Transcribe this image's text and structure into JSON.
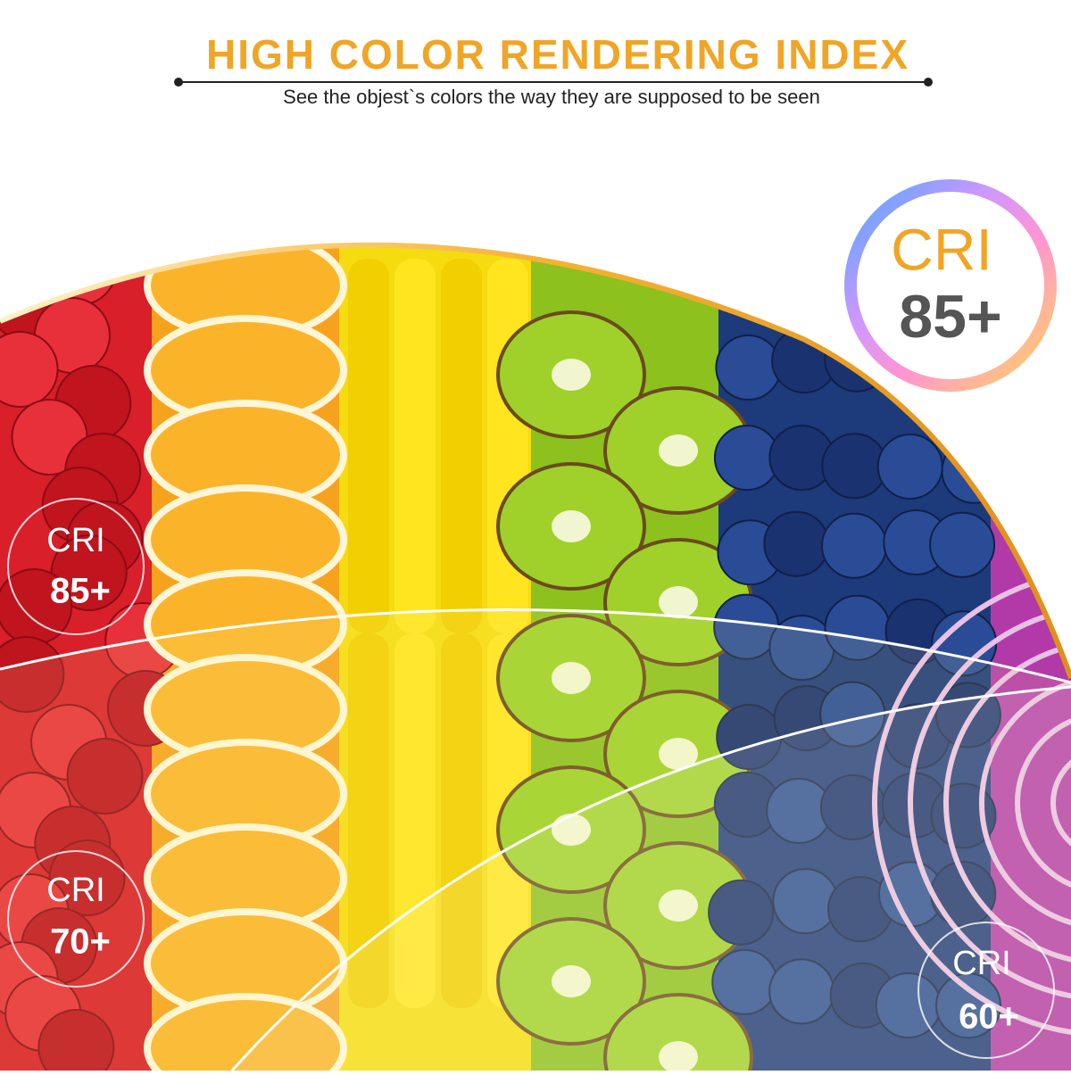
{
  "header": {
    "title": "HIGH COLOR RENDERING INDEX",
    "subtitle": "See the objest`s colors the way they are supposed to be seen"
  },
  "main_badge": {
    "label": "CRI",
    "value": "85+"
  },
  "badges": [
    {
      "label": "CRI",
      "value": "85+"
    },
    {
      "label": "CRI",
      "value": "70+"
    },
    {
      "label": "CRI",
      "value": "60+"
    }
  ]
}
